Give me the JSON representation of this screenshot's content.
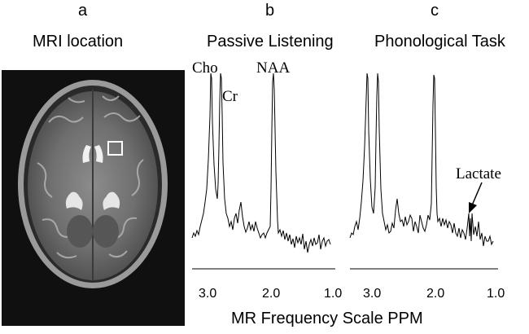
{
  "panels": {
    "a": {
      "letter": "a",
      "title": "MRI location"
    },
    "b": {
      "letter": "b",
      "title": "Passive Listening"
    },
    "c": {
      "letter": "c",
      "title": "Phonological Task"
    }
  },
  "peaks": {
    "cho": "Cho",
    "cr": "Cr",
    "naa": "NAA",
    "lactate": "Lactate"
  },
  "axis": {
    "ticks": [
      "3.0",
      "2.0",
      "1.0"
    ],
    "title": "MR Frequency Scale PPM"
  },
  "colors": {
    "mri_background": "#101010",
    "roi_box": "#ffffff",
    "trace": "#000000"
  }
}
